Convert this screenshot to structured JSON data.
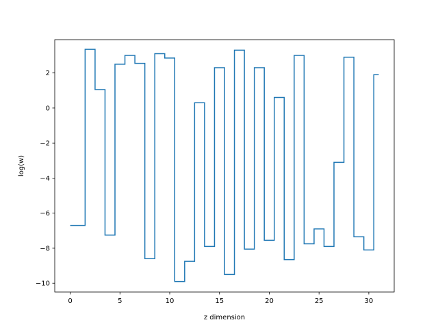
{
  "chart_data": {
    "type": "line",
    "drawstyle": "steps-mid",
    "title": "",
    "xlabel": "z dimension",
    "ylabel": "log(w)",
    "xlim": [
      -1.55,
      32.55
    ],
    "ylim": [
      -10.5,
      3.9
    ],
    "grid": false,
    "legend": "none",
    "xticks": [
      0,
      5,
      10,
      15,
      20,
      25,
      30
    ],
    "xtick_labels": [
      "0",
      "5",
      "10",
      "15",
      "20",
      "25",
      "30"
    ],
    "yticks": [
      -10,
      -8,
      -6,
      -4,
      -2,
      0,
      2
    ],
    "ytick_labels": [
      "−10",
      "−8",
      "−6",
      "−4",
      "−2",
      "0",
      "2"
    ],
    "series": [
      {
        "color": "#1f77b4",
        "x": [
          0,
          1,
          2,
          3,
          4,
          5,
          6,
          7,
          8,
          9,
          10,
          11,
          12,
          13,
          14,
          15,
          16,
          17,
          18,
          19,
          20,
          21,
          22,
          23,
          24,
          25,
          26,
          27,
          28,
          29,
          30,
          31
        ],
        "values": [
          -6.7,
          -6.7,
          3.35,
          1.05,
          -7.25,
          2.5,
          3.0,
          2.55,
          -8.6,
          3.1,
          2.85,
          -9.9,
          -8.75,
          0.3,
          -7.9,
          2.3,
          -9.5,
          3.3,
          -8.05,
          2.3,
          -7.55,
          0.6,
          -8.65,
          3.0,
          -7.75,
          -6.9,
          -7.9,
          -3.1,
          2.9,
          -7.35,
          -8.1,
          1.9
        ]
      }
    ]
  }
}
